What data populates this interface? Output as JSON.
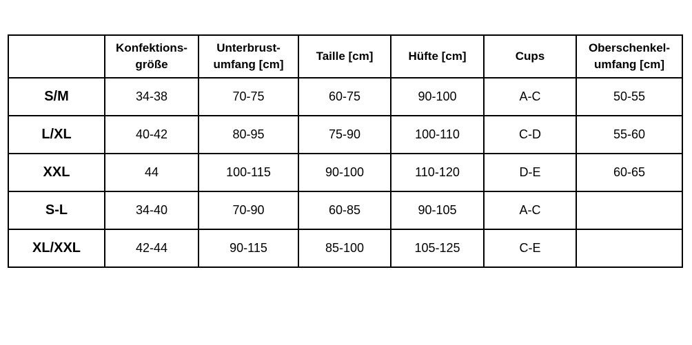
{
  "table": {
    "headers": [
      "",
      "Konfektions-\ngröße",
      "Unterbrust-\numfang [cm]",
      "Taille [cm]",
      "Hüfte [cm]",
      "Cups",
      "Oberschenkel-\numfang [cm]"
    ],
    "rows": [
      [
        "S/M",
        "34-38",
        "70-75",
        "60-75",
        "90-100",
        "A-C",
        "50-55"
      ],
      [
        "L/XL",
        "40-42",
        "80-95",
        "75-90",
        "100-110",
        "C-D",
        "55-60"
      ],
      [
        "XXL",
        "44",
        "100-115",
        "90-100",
        "110-120",
        "D-E",
        "60-65"
      ],
      [
        "S-L",
        "34-40",
        "70-90",
        "60-85",
        "90-105",
        "A-C",
        ""
      ],
      [
        "XL/XXL",
        "42-44",
        "90-115",
        "85-100",
        "105-125",
        "C-E",
        ""
      ]
    ]
  }
}
